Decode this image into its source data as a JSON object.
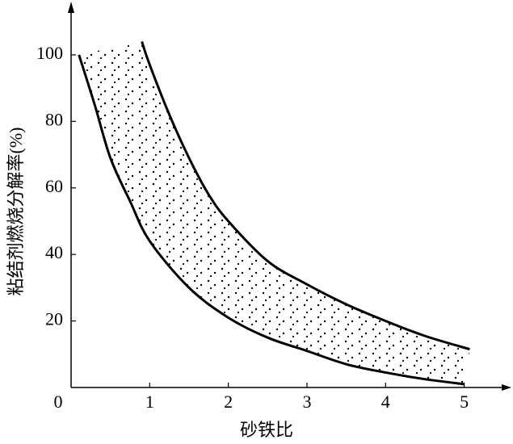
{
  "chart_data": {
    "type": "line",
    "xlabel": "砂铁比",
    "ylabel": "粘结剂燃烧分解率(%)",
    "xlim": [
      0,
      5.6
    ],
    "ylim": [
      0,
      116
    ],
    "xticks": [
      0,
      1,
      2,
      3,
      4,
      5
    ],
    "yticks": [
      20,
      40,
      60,
      80,
      100
    ],
    "band_fill": "dots",
    "series": [
      {
        "color": "#000000",
        "x": [
          0.1,
          0.3,
          0.5,
          0.75,
          1,
          1.5,
          2,
          2.5,
          3,
          3.5,
          4,
          4.5,
          5
        ],
        "values": [
          100,
          85,
          69,
          56,
          44,
          30,
          21,
          15,
          11,
          7,
          4.5,
          2.5,
          1
        ]
      },
      {
        "color": "#000000",
        "x": [
          0.9,
          1,
          1.25,
          1.5,
          1.75,
          2,
          2.5,
          3,
          3.5,
          4,
          4.5,
          5.07
        ],
        "values": [
          104,
          97,
          82,
          69,
          58,
          50,
          38,
          31,
          25,
          20,
          15.5,
          11.5
        ]
      }
    ]
  }
}
